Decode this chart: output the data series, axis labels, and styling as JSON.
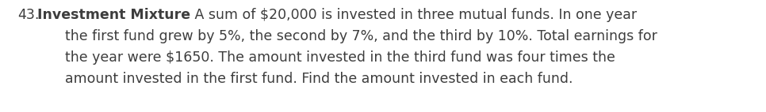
{
  "number": "43.",
  "bold_text": "Investment Mixture",
  "line1_normal": " A sum of $20,000 is invested in three mutual funds. In one year",
  "line2": "    the first fund grew by 5%, the second by 7%, and the third by 10%. Total earnings for",
  "line3": "    the year were $1650. The amount invested in the third fund was four times the",
  "line4": "    amount invested in the first fund. Find the amount invested in each fund.",
  "font_size": 12.5,
  "text_color": "#3d3d3d",
  "background_color": "#ffffff",
  "fig_width": 9.66,
  "fig_height": 1.42,
  "dpi": 100
}
